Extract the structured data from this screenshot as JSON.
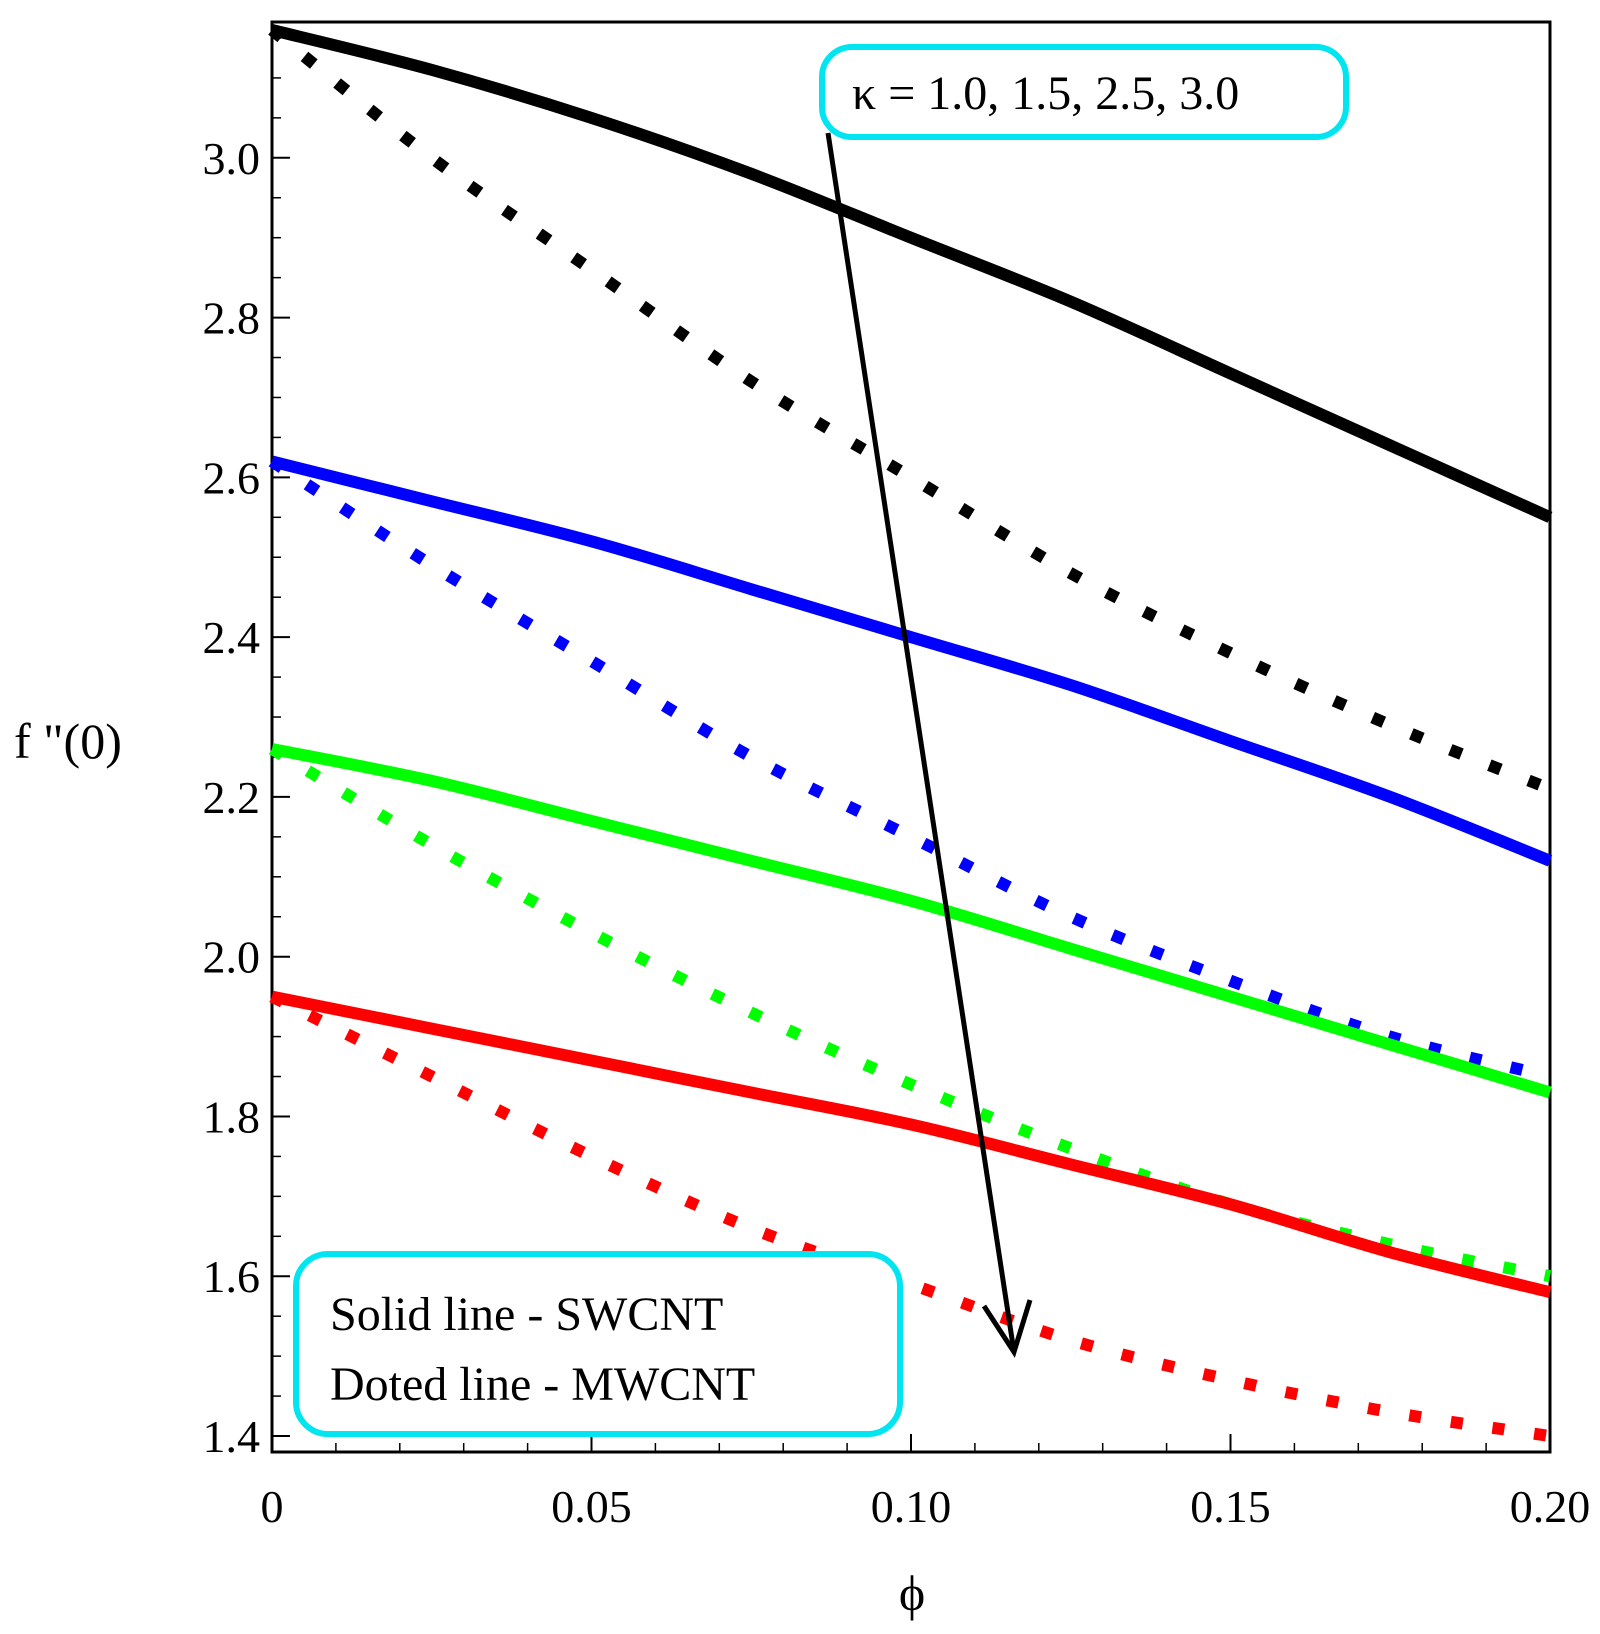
{
  "chart_data": {
    "type": "line",
    "title": "",
    "xlabel": "ϕ",
    "ylabel": "f \"(0)",
    "xlim": [
      0,
      0.2
    ],
    "ylim": [
      1.38,
      3.17
    ],
    "xticks": [
      {
        "value": 0,
        "label": "0"
      },
      {
        "value": 0.05,
        "label": "0.05"
      },
      {
        "value": 0.1,
        "label": "0.10"
      },
      {
        "value": 0.15,
        "label": "0.15"
      },
      {
        "value": 0.2,
        "label": "0.20"
      }
    ],
    "yticks": [
      {
        "value": 1.4,
        "label": "1.4"
      },
      {
        "value": 1.6,
        "label": "1.6"
      },
      {
        "value": 1.8,
        "label": "1.8"
      },
      {
        "value": 2.0,
        "label": "2.0"
      },
      {
        "value": 2.2,
        "label": "2.2"
      },
      {
        "value": 2.4,
        "label": "2.4"
      },
      {
        "value": 2.6,
        "label": "2.6"
      },
      {
        "value": 2.8,
        "label": "2.8"
      },
      {
        "value": 3.0,
        "label": "3.0"
      }
    ],
    "x": [
      0,
      0.025,
      0.05,
      0.075,
      0.1,
      0.125,
      0.15,
      0.175,
      0.2
    ],
    "series": [
      {
        "name": "SWCNT κ=1.0",
        "color": "#000000",
        "style": "solid",
        "values": [
          3.16,
          3.11,
          3.05,
          2.98,
          2.9,
          2.82,
          2.73,
          2.64,
          2.55
        ]
      },
      {
        "name": "MWCNT κ=1.0",
        "color": "#000000",
        "style": "dotted",
        "values": [
          3.16,
          3.0,
          2.86,
          2.72,
          2.6,
          2.48,
          2.38,
          2.29,
          2.21
        ]
      },
      {
        "name": "SWCNT κ=1.5",
        "color": "#0000ff",
        "style": "solid",
        "values": [
          2.62,
          2.57,
          2.52,
          2.46,
          2.4,
          2.34,
          2.27,
          2.2,
          2.12
        ]
      },
      {
        "name": "MWCNT κ=1.5",
        "color": "#0000ff",
        "style": "dotted",
        "values": [
          2.62,
          2.49,
          2.37,
          2.25,
          2.15,
          2.05,
          1.97,
          1.9,
          1.85
        ]
      },
      {
        "name": "SWCNT κ=2.5",
        "color": "#00ff00",
        "style": "solid",
        "values": [
          2.26,
          2.22,
          2.17,
          2.12,
          2.07,
          2.01,
          1.95,
          1.89,
          1.83
        ]
      },
      {
        "name": "MWCNT κ=2.5",
        "color": "#00ff00",
        "style": "dotted",
        "values": [
          2.26,
          2.14,
          2.03,
          1.93,
          1.84,
          1.76,
          1.69,
          1.64,
          1.6
        ]
      },
      {
        "name": "SWCNT κ=3.0",
        "color": "#ff0000",
        "style": "solid",
        "values": [
          1.95,
          1.91,
          1.87,
          1.83,
          1.79,
          1.74,
          1.69,
          1.63,
          1.58
        ]
      },
      {
        "name": "MWCNT κ=3.0",
        "color": "#ff0000",
        "style": "dotted",
        "values": [
          1.95,
          1.85,
          1.75,
          1.66,
          1.59,
          1.52,
          1.47,
          1.43,
          1.4
        ]
      }
    ],
    "annotations": {
      "kappa_text": "κ = 1.0, 1.5, 2.5, 3.0",
      "legend_line1": "Solid line - SWCNT",
      "legend_line2": "Doted line - MWCNT",
      "box_color": "#00e5f0"
    }
  }
}
